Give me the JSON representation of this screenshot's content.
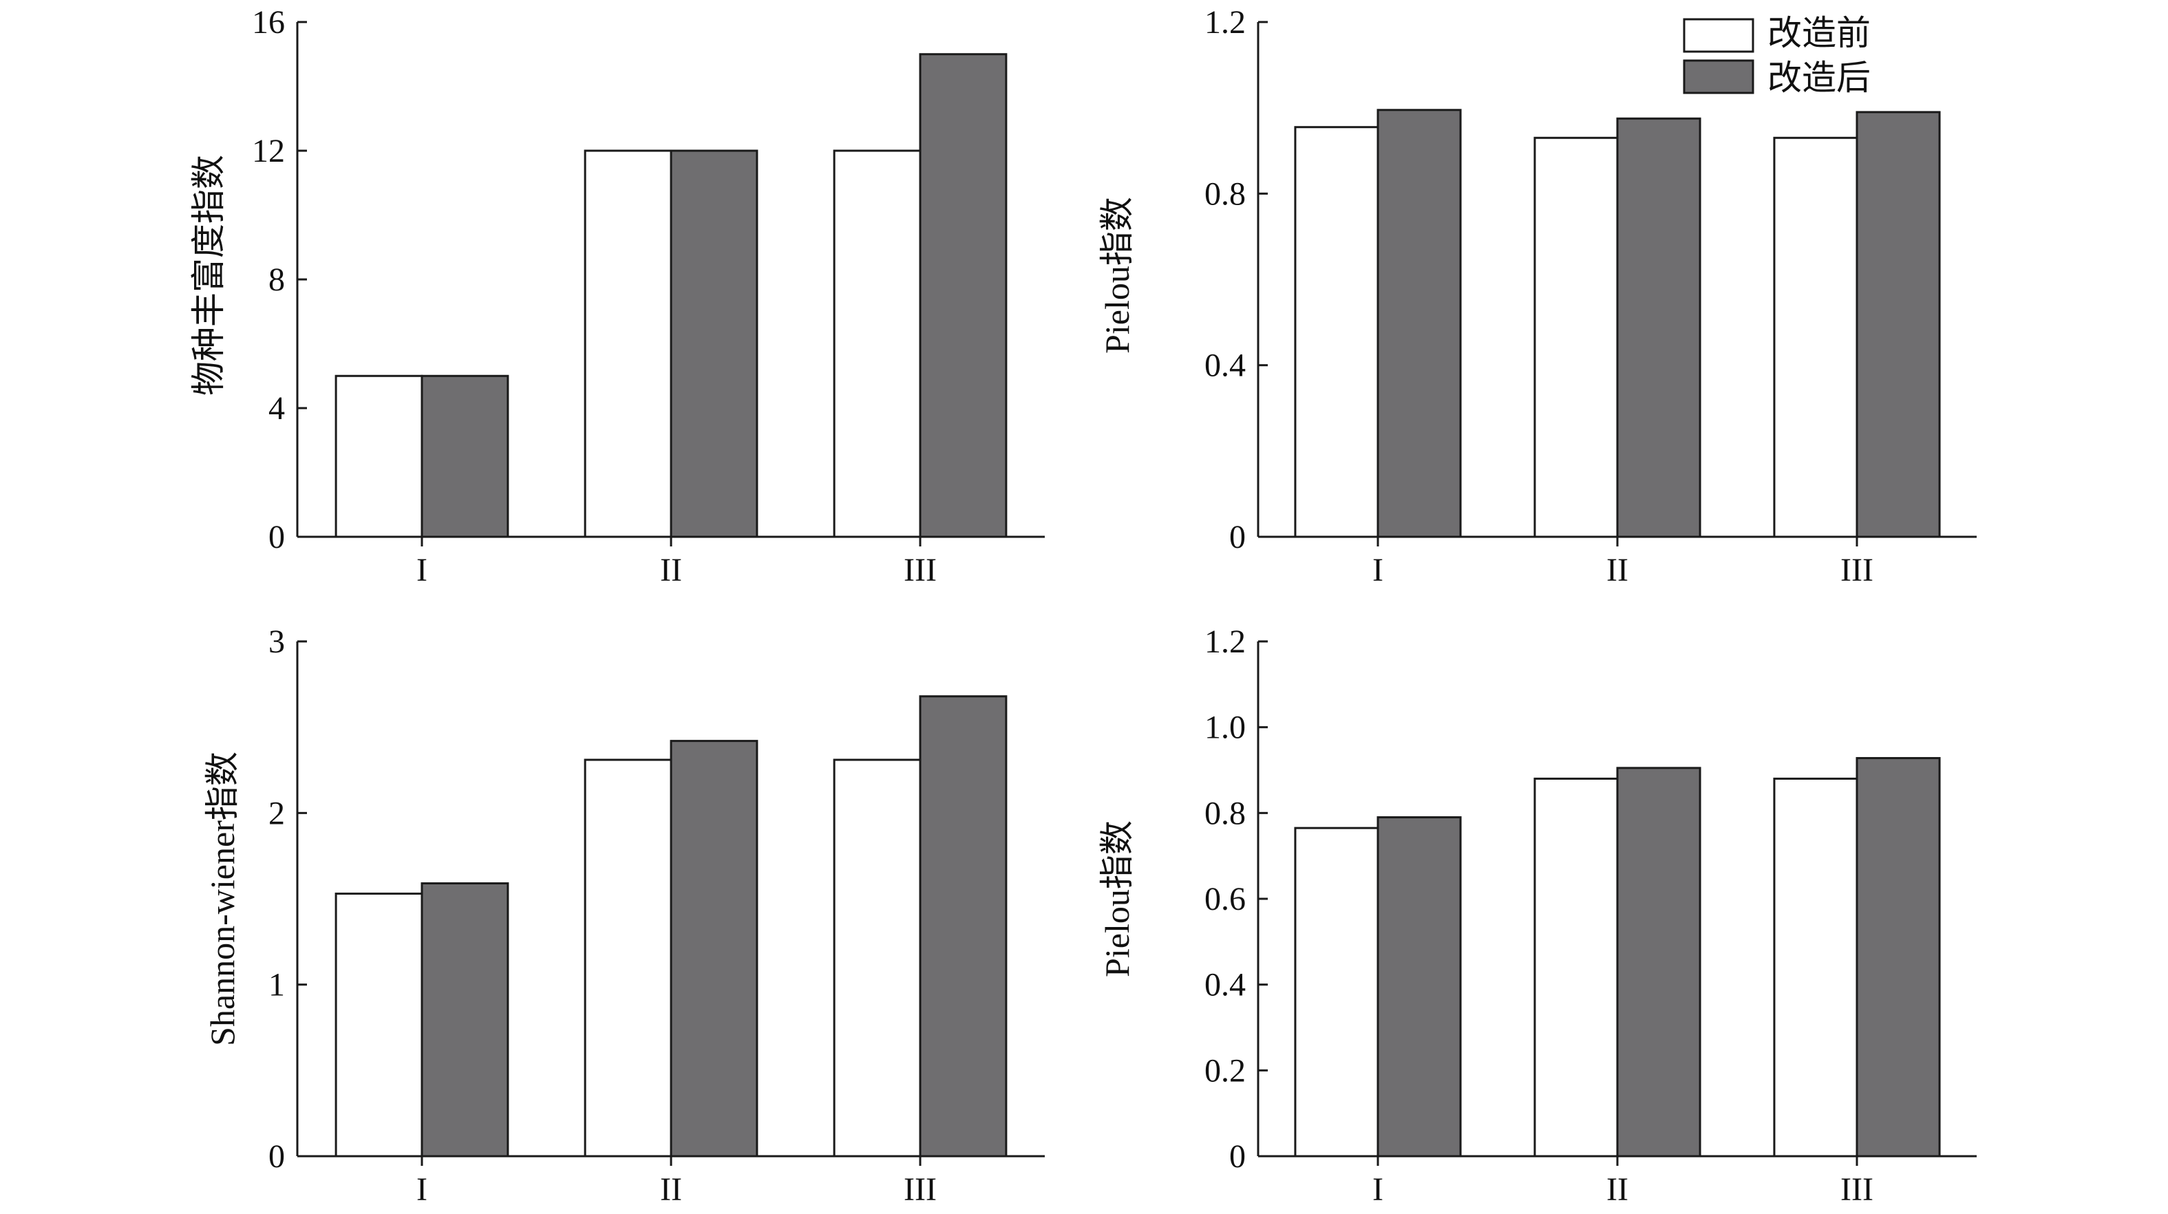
{
  "colors": {
    "before": "#ffffff",
    "after": "#6f6e70",
    "stroke": "#1a1a1a"
  },
  "legend": [
    {
      "label": "改造前",
      "color": "#ffffff"
    },
    {
      "label": "改造后",
      "color": "#6f6e70"
    }
  ],
  "chart_data": [
    {
      "type": "bar",
      "categories": [
        "I",
        "II",
        "III"
      ],
      "ylabel": "物种丰富度指数",
      "ylim": [
        0,
        16
      ],
      "yticks": [
        "0",
        "4",
        "8",
        "12",
        "16"
      ],
      "series": [
        {
          "name": "改造前",
          "values": [
            5,
            12,
            12
          ]
        },
        {
          "name": "改造后",
          "values": [
            5,
            12,
            15
          ]
        }
      ]
    },
    {
      "type": "bar",
      "categories": [
        "I",
        "II",
        "III"
      ],
      "ylabel": "Pielou指数",
      "ylim": [
        0,
        1.2
      ],
      "yticks": [
        "0",
        "0.4",
        "0.8",
        "1.2"
      ],
      "series": [
        {
          "name": "改造前",
          "values": [
            0.955,
            0.93,
            0.93
          ]
        },
        {
          "name": "改造后",
          "values": [
            0.995,
            0.975,
            0.99
          ]
        }
      ]
    },
    {
      "type": "bar",
      "categories": [
        "I",
        "II",
        "III"
      ],
      "ylabel": "Shannon-wiener指数",
      "ylim": [
        0,
        3
      ],
      "yticks": [
        "0",
        "1",
        "2",
        "3"
      ],
      "series": [
        {
          "name": "改造前",
          "values": [
            1.53,
            2.31,
            2.31
          ]
        },
        {
          "name": "改造后",
          "values": [
            1.59,
            2.42,
            2.68
          ]
        }
      ]
    },
    {
      "type": "bar",
      "categories": [
        "I",
        "II",
        "III"
      ],
      "ylabel": "Pielou指数",
      "ylim": [
        0,
        1.2
      ],
      "yticks": [
        "0",
        "0.2",
        "0.4",
        "0.6",
        "0.8",
        "1.0",
        "1.2"
      ],
      "series": [
        {
          "name": "改造前",
          "values": [
            0.765,
            0.88,
            0.88
          ]
        },
        {
          "name": "改造后",
          "values": [
            0.79,
            0.905,
            0.928
          ]
        }
      ]
    }
  ]
}
